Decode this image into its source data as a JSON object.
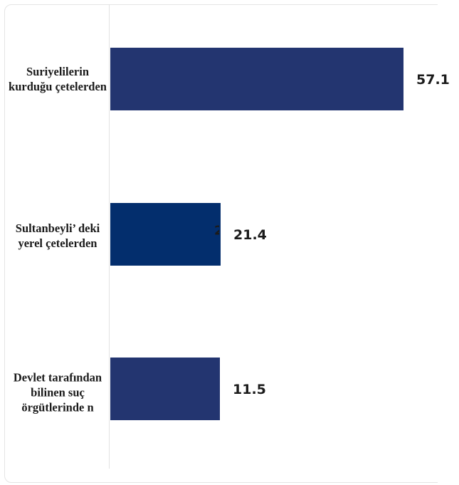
{
  "chart_data": {
    "type": "bar",
    "orientation": "horizontal",
    "categories": [
      "Suriyelilerin kurduğu çetelerden",
      "Sultanbeyli’ deki yerel çetelerden",
      "Devlet tarafından bilinen suç örgütlerinde n"
    ],
    "values": [
      57.1,
      21.4,
      11.5
    ],
    "value_labels": [
      "57.1",
      "21.4",
      "11.5"
    ],
    "bar_colors": [
      "#233570",
      "#032e6d",
      "#233570"
    ],
    "xlim": [
      0,
      60
    ],
    "grid": false,
    "legend": "none"
  },
  "clipped_label": "2"
}
